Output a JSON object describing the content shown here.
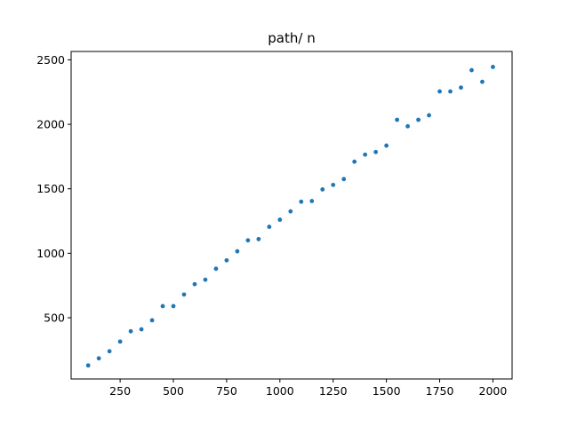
{
  "chart_data": {
    "type": "scatter",
    "title": "path/ n",
    "xlabel": "",
    "ylabel": "",
    "xlim": [
      20,
      2090
    ],
    "ylim": [
      25,
      2565
    ],
    "x_ticks": [
      250,
      500,
      750,
      1000,
      1250,
      1500,
      1750,
      2000
    ],
    "y_ticks": [
      500,
      1000,
      1500,
      2000,
      2500
    ],
    "grid": false,
    "color": "#1f77b4",
    "series": [
      {
        "x": [
          100,
          150,
          200,
          250,
          300,
          350,
          400,
          450,
          500,
          550,
          600,
          650,
          700,
          750,
          800,
          850,
          900,
          950,
          1000,
          1050,
          1100,
          1150,
          1200,
          1250,
          1300,
          1350,
          1400,
          1450,
          1500,
          1550,
          1600,
          1650,
          1700,
          1750,
          1800,
          1850,
          1900,
          1950,
          2000
        ],
        "y": [
          130,
          185,
          240,
          315,
          395,
          410,
          480,
          590,
          590,
          680,
          760,
          795,
          880,
          945,
          1015,
          1100,
          1110,
          1205,
          1260,
          1325,
          1400,
          1405,
          1495,
          1530,
          1575,
          1710,
          1765,
          1785,
          1835,
          2035,
          1985,
          2035,
          2070,
          2255,
          2255,
          2285,
          2420,
          2330,
          2445
        ]
      }
    ]
  }
}
